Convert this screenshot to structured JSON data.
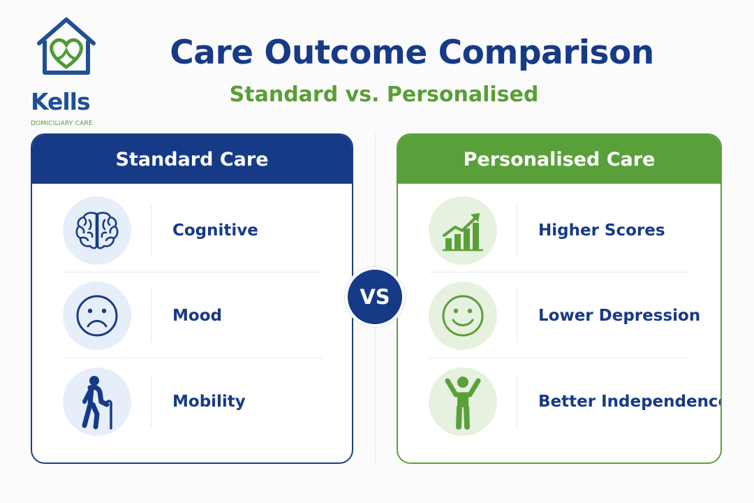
{
  "logo": {
    "name": "Kells",
    "tagline": "DOMICILIARY CARE"
  },
  "title": "Care Outcome Comparison",
  "subtitle": "Standard vs. Personalised",
  "vs_label": "VS",
  "colors": {
    "navy": "#173a86",
    "green": "#5aa03a"
  },
  "standard": {
    "header": "Standard Care",
    "rows": [
      {
        "icon": "brain-icon",
        "label": "Cognitive"
      },
      {
        "icon": "sad-face-icon",
        "label": "Mood"
      },
      {
        "icon": "elderly-walking-cane-icon",
        "label": "Mobility"
      }
    ]
  },
  "personalised": {
    "header": "Personalised Care",
    "rows": [
      {
        "icon": "rising-bar-chart-icon",
        "label": "Higher Scores"
      },
      {
        "icon": "smiley-face-icon",
        "label": "Lower Depression"
      },
      {
        "icon": "person-arms-raised-icon",
        "label": "Better Independence"
      }
    ]
  }
}
